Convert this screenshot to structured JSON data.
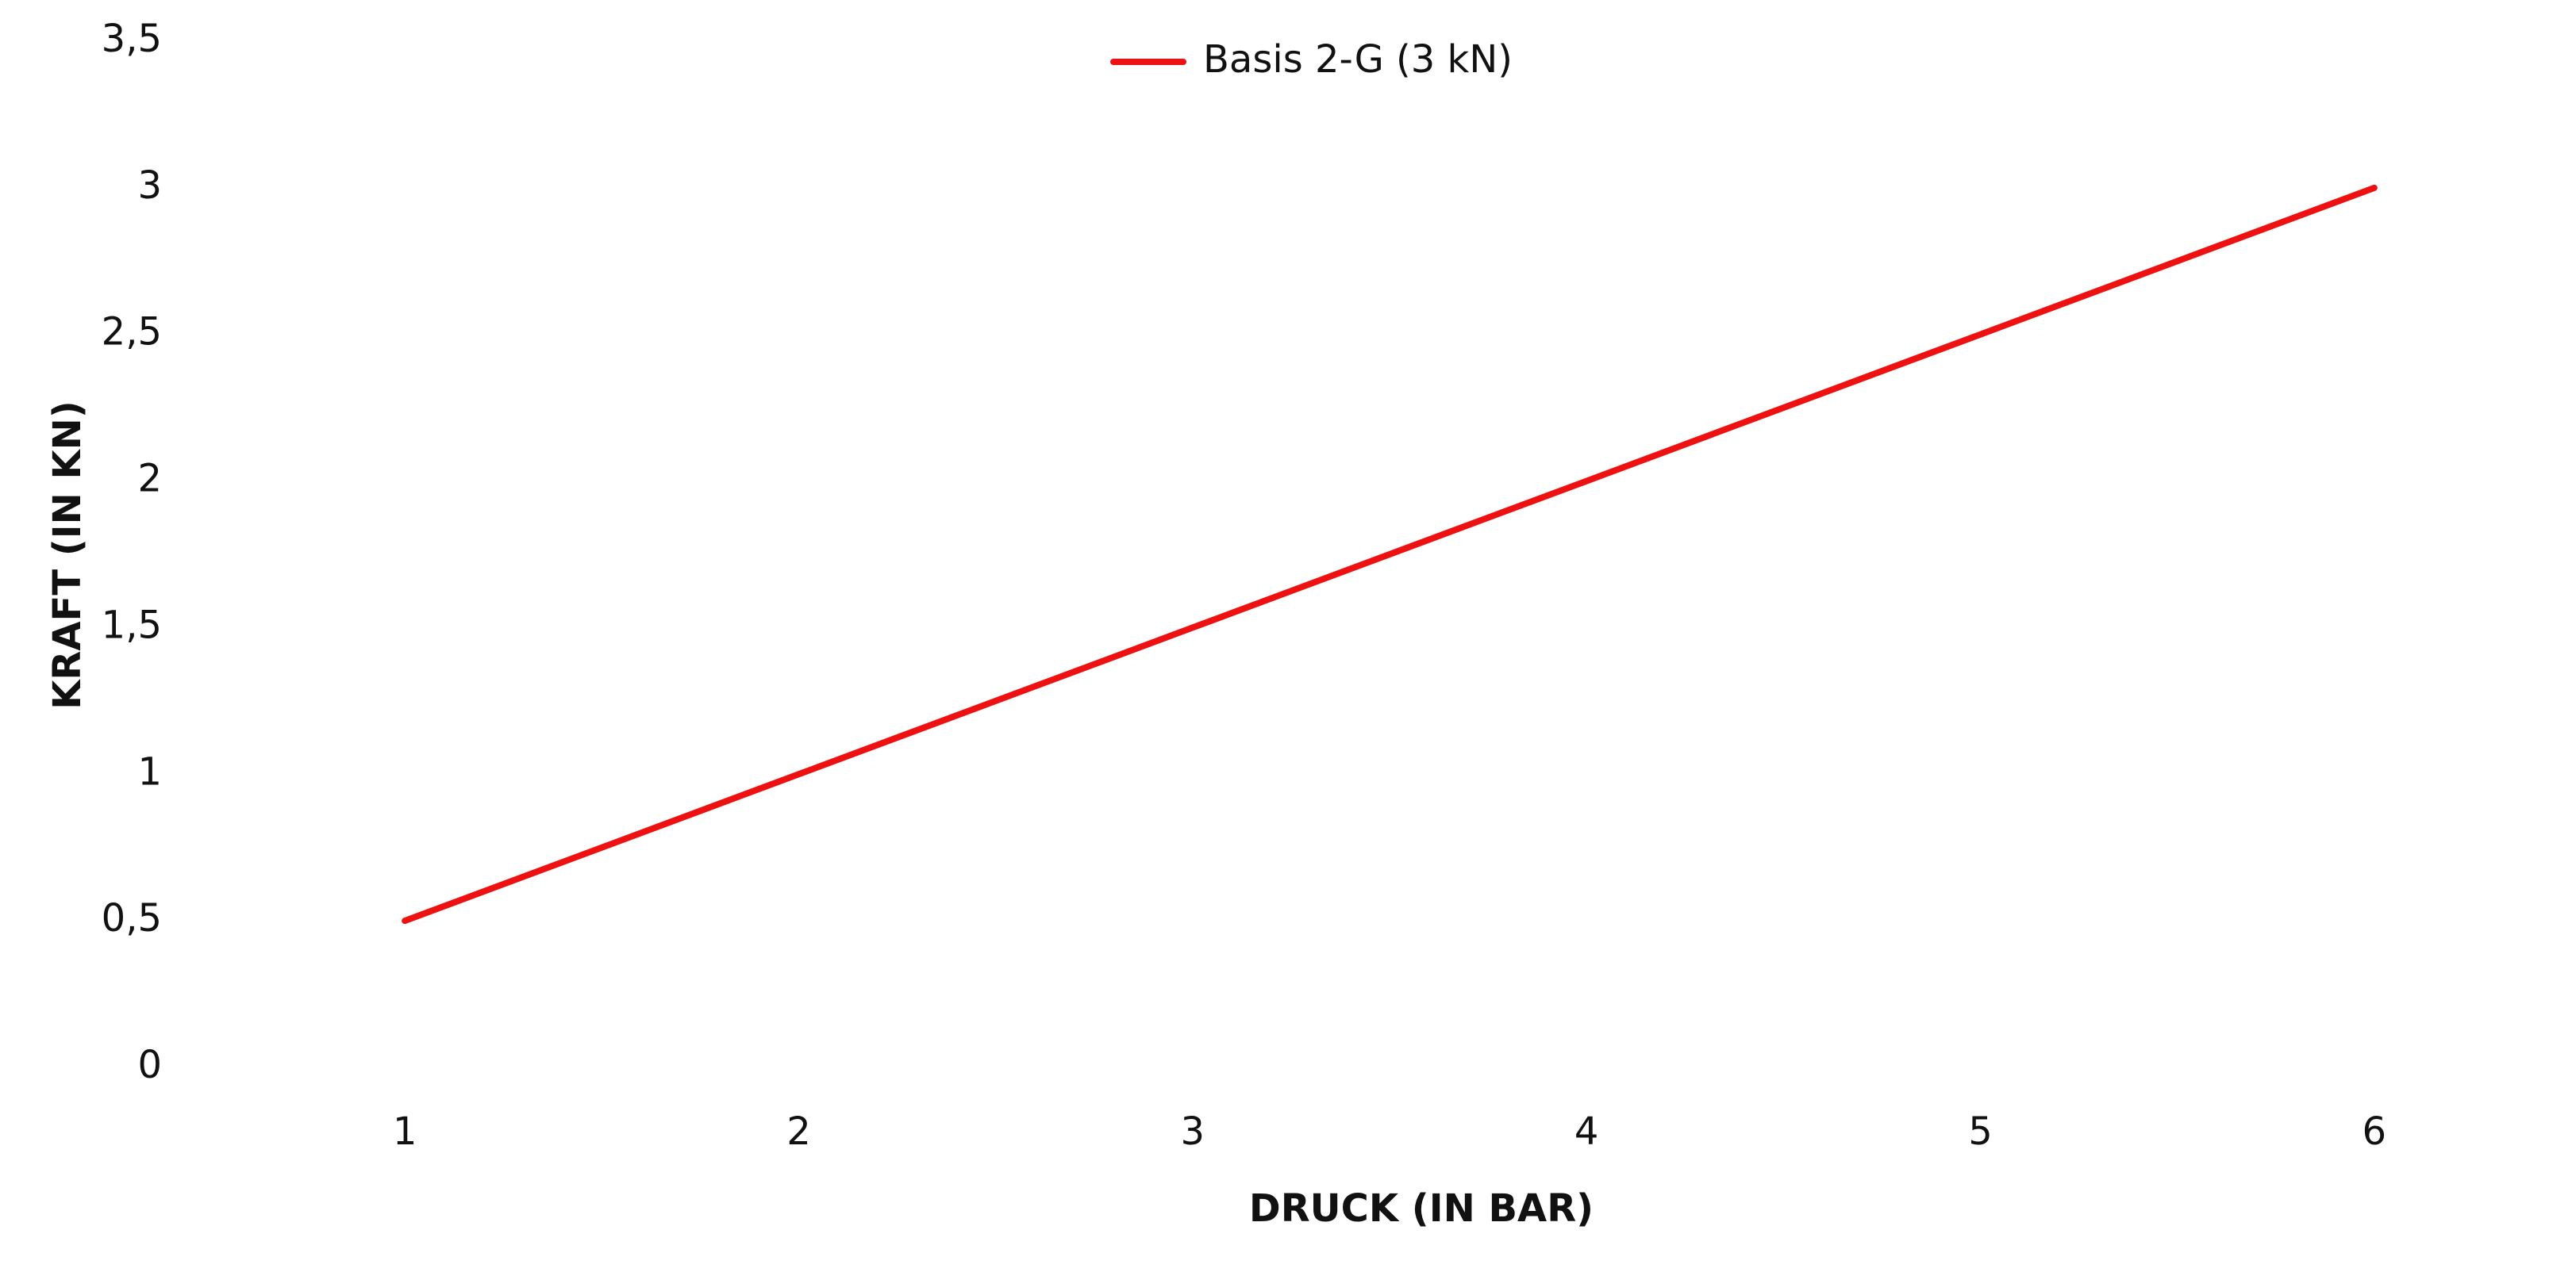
{
  "chart_data": {
    "type": "line",
    "categories": [
      "1",
      "2",
      "3",
      "4",
      "5",
      "6"
    ],
    "series": [
      {
        "name": "Basis 2-G (3 kN)",
        "color": "#ee1111",
        "values": [
          0.5,
          1,
          1.5,
          2,
          2.5,
          3
        ]
      }
    ],
    "x_label": "DRUCK (IN BAR)",
    "y_label": "KRAFT (IN KN)",
    "ylim": [
      0,
      3.5
    ],
    "yticks": [
      0,
      {
        "value": 0.5,
        "label": "0,5"
      },
      1,
      {
        "value": 1.5,
        "label": "1,5"
      },
      2,
      {
        "value": 2.5,
        "label": "2,5"
      },
      3,
      {
        "value": 3.5,
        "label": "3,5"
      }
    ],
    "legend": "top"
  }
}
